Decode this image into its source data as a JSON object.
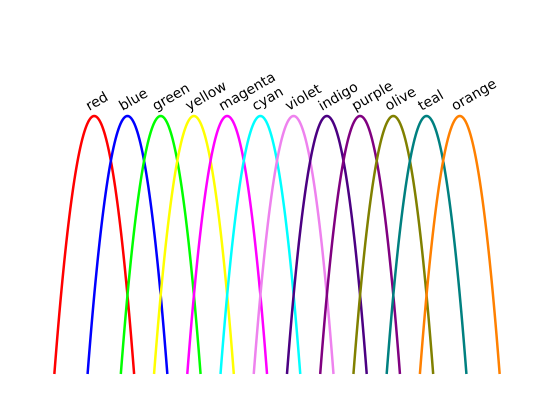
{
  "chart_data": {
    "type": "line",
    "title": "",
    "xlabel": "",
    "ylabel": "",
    "axes_visible": false,
    "grid": false,
    "legend": "none",
    "labels_at": "peak",
    "xlim": [
      0,
      13
    ],
    "ylim": [
      0,
      1
    ],
    "shape": "parabola",
    "half_width": 1.2,
    "series": [
      {
        "name": "red",
        "color": "#ff0000",
        "peak_x": 1,
        "peak_y": 1
      },
      {
        "name": "blue",
        "color": "#0000ff",
        "peak_x": 2,
        "peak_y": 1
      },
      {
        "name": "green",
        "color": "#00ff00",
        "peak_x": 3,
        "peak_y": 1
      },
      {
        "name": "yellow",
        "color": "#ffff00",
        "peak_x": 4,
        "peak_y": 1
      },
      {
        "name": "magenta",
        "color": "#ff00ff",
        "peak_x": 5,
        "peak_y": 1
      },
      {
        "name": "cyan",
        "color": "#00ffff",
        "peak_x": 6,
        "peak_y": 1
      },
      {
        "name": "violet",
        "color": "#ee82ee",
        "peak_x": 7,
        "peak_y": 1
      },
      {
        "name": "indigo",
        "color": "#4b0082",
        "peak_x": 8,
        "peak_y": 1
      },
      {
        "name": "purple",
        "color": "#800080",
        "peak_x": 9,
        "peak_y": 1
      },
      {
        "name": "olive",
        "color": "#808000",
        "peak_x": 10,
        "peak_y": 1
      },
      {
        "name": "teal",
        "color": "#008080",
        "peak_x": 11,
        "peak_y": 1
      },
      {
        "name": "orange",
        "color": "#ff8000",
        "peak_x": 12,
        "peak_y": 1
      }
    ]
  }
}
